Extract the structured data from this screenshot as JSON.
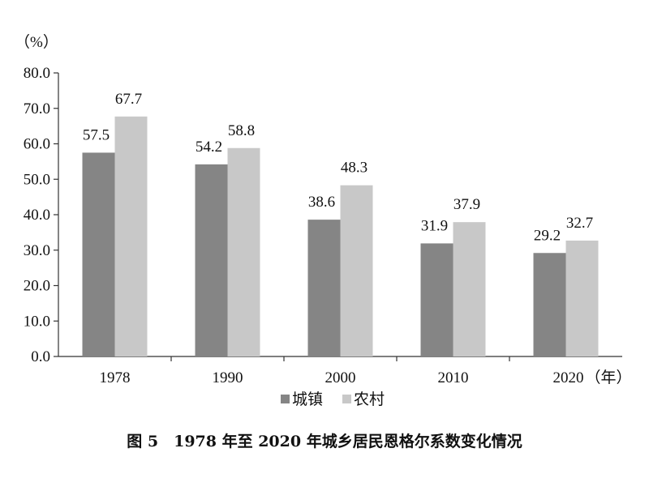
{
  "chart_data": {
    "type": "bar",
    "title": "图 5　1978 年至 2020 年城乡居民恩格尔系数变化情况",
    "ylabel": "（%）",
    "xlabel": "（年）",
    "categories": [
      "1978",
      "1990",
      "2000",
      "2010",
      "2020"
    ],
    "series": [
      {
        "name": "城镇",
        "values": [
          57.5,
          54.2,
          38.6,
          31.9,
          29.2
        ],
        "color": "#858585"
      },
      {
        "name": "农村",
        "values": [
          67.7,
          58.8,
          48.3,
          37.9,
          32.7
        ],
        "color": "#c8c8c8"
      }
    ],
    "ylim": [
      0,
      80
    ],
    "yticks": [
      "0.0",
      "10.0",
      "20.0",
      "30.0",
      "40.0",
      "50.0",
      "60.0",
      "70.0",
      "80.0"
    ],
    "grid": false,
    "legend": "bottom",
    "data_labels": true
  }
}
